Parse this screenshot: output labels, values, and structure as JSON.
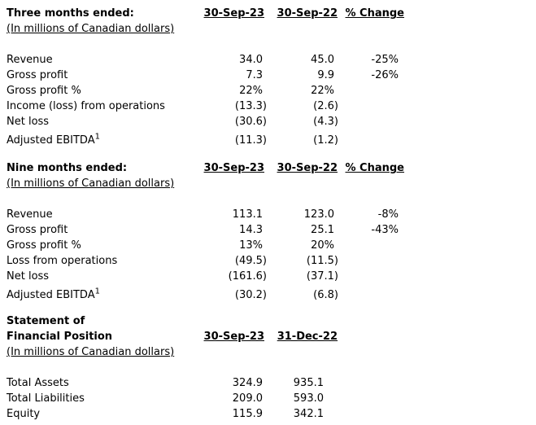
{
  "page": {
    "background_color": "#ffffff",
    "text_color": "#000000"
  },
  "sections": [
    {
      "id": "three-months",
      "title_line1": "Three months ended:",
      "title_line2": "",
      "subtitle": "(In millions of Canadian dollars)",
      "columns": [
        "30-Sep-23",
        "30-Sep-22",
        "% Change"
      ],
      "rows": [
        {
          "label": "Revenue",
          "col1": "34.0",
          "col2": "45.0",
          "change": "-25%"
        },
        {
          "label": "Gross profit",
          "col1": "7.3",
          "col2": "9.9",
          "change": "-26%"
        },
        {
          "label": "Gross profit %",
          "col1": "22%",
          "col2": "22%",
          "change": ""
        },
        {
          "label": "Income (loss) from operations",
          "col1": "(13.3)",
          "col2": "(2.6)",
          "change": ""
        },
        {
          "label": "Net loss",
          "col1": "(30.6)",
          "col2": "(4.3)",
          "change": ""
        },
        {
          "label": "Adjusted EBITDA",
          "sup": "1",
          "col1": "(11.3)",
          "col2": "(1.2)",
          "change": ""
        }
      ]
    },
    {
      "id": "nine-months",
      "title_line1": "Nine months ended:",
      "title_line2": "",
      "subtitle": "(In millions of Canadian dollars)",
      "columns": [
        "30-Sep-23",
        "30-Sep-22",
        "% Change"
      ],
      "rows": [
        {
          "label": "Revenue",
          "col1": "113.1",
          "col2": "123.0",
          "change": "-8%"
        },
        {
          "label": "Gross profit",
          "col1": "14.3",
          "col2": "25.1",
          "change": "-43%"
        },
        {
          "label": "Gross profit %",
          "col1": "13%",
          "col2": "20%",
          "change": ""
        },
        {
          "label": "Loss from operations",
          "col1": "(49.5)",
          "col2": "(11.5)",
          "change": ""
        },
        {
          "label": "Net loss",
          "col1": "(161.6)",
          "col2": "(37.1)",
          "change": ""
        },
        {
          "label": "Adjusted EBITDA",
          "sup": "1",
          "col1": "(30.2)",
          "col2": "(6.8)",
          "change": ""
        }
      ]
    },
    {
      "id": "financial-position",
      "title_line1": "Statement of",
      "title_line2": "Financial Position",
      "subtitle": "(In millions of Canadian dollars)",
      "columns": [
        "30-Sep-23",
        "31-Dec-22"
      ],
      "rows": [
        {
          "label": "Total Assets",
          "col1": "324.9",
          "col2": "935.1"
        },
        {
          "label": "Total Liabilities",
          "col1": "209.0",
          "col2": "593.0"
        },
        {
          "label": "Equity",
          "col1": "115.9",
          "col2": "342.1"
        }
      ]
    }
  ]
}
